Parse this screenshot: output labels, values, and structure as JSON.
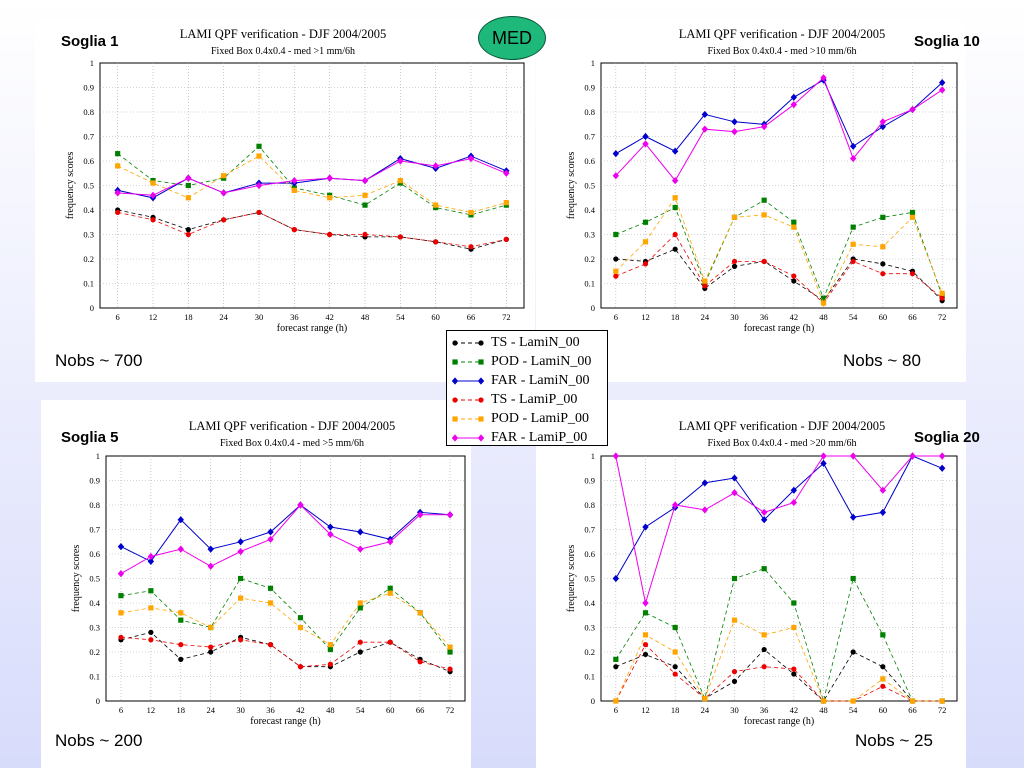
{
  "badge": "MED",
  "legend": [
    {
      "label": "TS - LamiN_00",
      "color": "#000000",
      "marker": "circle",
      "dash": true
    },
    {
      "label": "POD - LamiN_00",
      "color": "#008000",
      "marker": "square",
      "dash": true
    },
    {
      "label": "FAR - LamiN_00",
      "color": "#0000cc",
      "marker": "diamond",
      "dash": false
    },
    {
      "label": "TS - LamiP_00",
      "color": "#ee0000",
      "marker": "circle",
      "dash": true
    },
    {
      "label": "POD - LamiP_00",
      "color": "#ffa500",
      "marker": "square",
      "dash": true
    },
    {
      "label": "FAR - LamiP_00",
      "color": "#ee00ee",
      "marker": "diamond",
      "dash": false
    }
  ],
  "panels": [
    {
      "soglia": "Soglia 1",
      "nobs": "Nobs ~ 700"
    },
    {
      "soglia": "Soglia 10",
      "nobs": "Nobs ~ 80"
    },
    {
      "soglia": "Soglia 5",
      "nobs": "Nobs ~ 200"
    },
    {
      "soglia": "Soglia 20",
      "nobs": "Nobs ~ 25"
    }
  ],
  "chart_data": [
    {
      "type": "line",
      "title": "LAMI QPF verification - DJF 2004/2005",
      "subtitle": "Fixed Box 0.4x0.4 - med >1 mm/6h",
      "xlabel": "forecast range (h)",
      "ylabel": "frequency scores",
      "ylim": [
        0,
        1
      ],
      "grid": true,
      "x": [
        6,
        12,
        18,
        24,
        30,
        36,
        42,
        48,
        54,
        60,
        66,
        72
      ],
      "series": [
        {
          "name": "TS - LamiN_00",
          "values": [
            0.4,
            0.37,
            0.32,
            0.36,
            0.39,
            0.32,
            0.3,
            0.29,
            0.29,
            0.27,
            0.24,
            0.28
          ]
        },
        {
          "name": "POD - LamiN_00",
          "values": [
            0.63,
            0.52,
            0.5,
            0.53,
            0.66,
            0.49,
            0.46,
            0.42,
            0.51,
            0.41,
            0.38,
            0.42
          ]
        },
        {
          "name": "FAR - LamiN_00",
          "values": [
            0.48,
            0.45,
            0.53,
            0.47,
            0.51,
            0.51,
            0.53,
            0.52,
            0.61,
            0.57,
            0.62,
            0.56
          ]
        },
        {
          "name": "TS - LamiP_00",
          "values": [
            0.39,
            0.36,
            0.3,
            0.36,
            0.39,
            0.32,
            0.3,
            0.3,
            0.29,
            0.27,
            0.25,
            0.28
          ]
        },
        {
          "name": "POD - LamiP_00",
          "values": [
            0.58,
            0.51,
            0.45,
            0.54,
            0.62,
            0.48,
            0.45,
            0.46,
            0.52,
            0.42,
            0.39,
            0.43
          ]
        },
        {
          "name": "FAR - LamiP_00",
          "values": [
            0.47,
            0.46,
            0.53,
            0.47,
            0.5,
            0.52,
            0.53,
            0.52,
            0.6,
            0.58,
            0.61,
            0.55
          ]
        }
      ]
    },
    {
      "type": "line",
      "title": "LAMI QPF verification - DJF 2004/2005",
      "subtitle": "Fixed Box 0.4x0.4 - med >10 mm/6h",
      "xlabel": "forecast range (h)",
      "ylabel": "frequency scores",
      "ylim": [
        0,
        1
      ],
      "grid": true,
      "x": [
        6,
        12,
        18,
        24,
        30,
        36,
        42,
        48,
        54,
        60,
        66,
        72
      ],
      "series": [
        {
          "name": "TS - LamiN_00",
          "values": [
            0.2,
            0.19,
            0.24,
            0.08,
            0.17,
            0.19,
            0.11,
            0.03,
            0.2,
            0.18,
            0.15,
            0.03
          ]
        },
        {
          "name": "POD - LamiN_00",
          "values": [
            0.3,
            0.35,
            0.41,
            0.1,
            0.37,
            0.44,
            0.35,
            0.04,
            0.33,
            0.37,
            0.39,
            0.05
          ]
        },
        {
          "name": "FAR - LamiN_00",
          "values": [
            0.63,
            0.7,
            0.64,
            0.79,
            0.76,
            0.75,
            0.86,
            0.93,
            0.66,
            0.74,
            0.81,
            0.92
          ]
        },
        {
          "name": "TS - LamiP_00",
          "values": [
            0.13,
            0.18,
            0.3,
            0.09,
            0.19,
            0.19,
            0.13,
            0.02,
            0.19,
            0.14,
            0.14,
            0.04
          ]
        },
        {
          "name": "POD - LamiP_00",
          "values": [
            0.15,
            0.27,
            0.45,
            0.11,
            0.37,
            0.38,
            0.33,
            0.02,
            0.26,
            0.25,
            0.37,
            0.06
          ]
        },
        {
          "name": "FAR - LamiP_00",
          "values": [
            0.54,
            0.67,
            0.52,
            0.73,
            0.72,
            0.74,
            0.83,
            0.94,
            0.61,
            0.76,
            0.81,
            0.89
          ]
        }
      ]
    },
    {
      "type": "line",
      "title": "LAMI QPF verification - DJF 2004/2005",
      "subtitle": "Fixed Box 0.4x0.4 - med >5 mm/6h",
      "xlabel": "forecast range (h)",
      "ylabel": "frequency scores",
      "ylim": [
        0,
        1
      ],
      "grid": true,
      "x": [
        6,
        12,
        18,
        24,
        30,
        36,
        42,
        48,
        54,
        60,
        66,
        72
      ],
      "series": [
        {
          "name": "TS - LamiN_00",
          "values": [
            0.25,
            0.28,
            0.17,
            0.2,
            0.26,
            0.23,
            0.14,
            0.14,
            0.2,
            0.24,
            0.17,
            0.12
          ]
        },
        {
          "name": "POD - LamiN_00",
          "values": [
            0.43,
            0.45,
            0.33,
            0.3,
            0.5,
            0.46,
            0.34,
            0.21,
            0.38,
            0.46,
            0.36,
            0.2
          ]
        },
        {
          "name": "FAR - LamiN_00",
          "values": [
            0.63,
            0.57,
            0.74,
            0.62,
            0.65,
            0.69,
            0.8,
            0.71,
            0.69,
            0.66,
            0.77,
            0.76
          ]
        },
        {
          "name": "TS - LamiP_00",
          "values": [
            0.26,
            0.25,
            0.23,
            0.22,
            0.25,
            0.23,
            0.14,
            0.15,
            0.24,
            0.24,
            0.16,
            0.13
          ]
        },
        {
          "name": "POD - LamiP_00",
          "values": [
            0.36,
            0.38,
            0.36,
            0.3,
            0.42,
            0.4,
            0.3,
            0.23,
            0.4,
            0.44,
            0.36,
            0.22
          ]
        },
        {
          "name": "FAR - LamiP_00",
          "values": [
            0.52,
            0.59,
            0.62,
            0.55,
            0.61,
            0.66,
            0.8,
            0.68,
            0.62,
            0.65,
            0.76,
            0.76
          ]
        }
      ]
    },
    {
      "type": "line",
      "title": "LAMI QPF verification - DJF 2004/2005",
      "subtitle": "Fixed Box 0.4x0.4 - med >20 mm/6h",
      "xlabel": "forecast range (h)",
      "ylabel": "frequency scores",
      "ylim": [
        0,
        1
      ],
      "grid": true,
      "x": [
        6,
        12,
        18,
        24,
        30,
        36,
        42,
        48,
        54,
        60,
        66,
        72
      ],
      "series": [
        {
          "name": "TS - LamiN_00",
          "values": [
            0.14,
            0.19,
            0.14,
            0.01,
            0.08,
            0.21,
            0.11,
            0.0,
            0.2,
            0.14,
            0.0,
            0.0
          ]
        },
        {
          "name": "POD - LamiN_00",
          "values": [
            0.17,
            0.36,
            0.3,
            0.01,
            0.5,
            0.54,
            0.4,
            0.0,
            0.5,
            0.27,
            0.0,
            0.0
          ]
        },
        {
          "name": "FAR - LamiN_00",
          "values": [
            0.5,
            0.71,
            0.79,
            0.89,
            0.91,
            0.74,
            0.86,
            0.97,
            0.75,
            0.77,
            1.0,
            0.95
          ]
        },
        {
          "name": "TS - LamiP_00",
          "values": [
            0.0,
            0.23,
            0.11,
            0.01,
            0.12,
            0.14,
            0.13,
            0.0,
            0.0,
            0.06,
            0.0,
            0.0
          ]
        },
        {
          "name": "POD - LamiP_00",
          "values": [
            0.0,
            0.27,
            0.2,
            0.01,
            0.33,
            0.27,
            0.3,
            0.0,
            0.0,
            0.09,
            0.0,
            0.0
          ]
        },
        {
          "name": "FAR - LamiP_00",
          "values": [
            1.0,
            0.4,
            0.8,
            0.78,
            0.85,
            0.77,
            0.81,
            1.0,
            1.0,
            0.86,
            1.0,
            1.0
          ]
        }
      ]
    }
  ]
}
